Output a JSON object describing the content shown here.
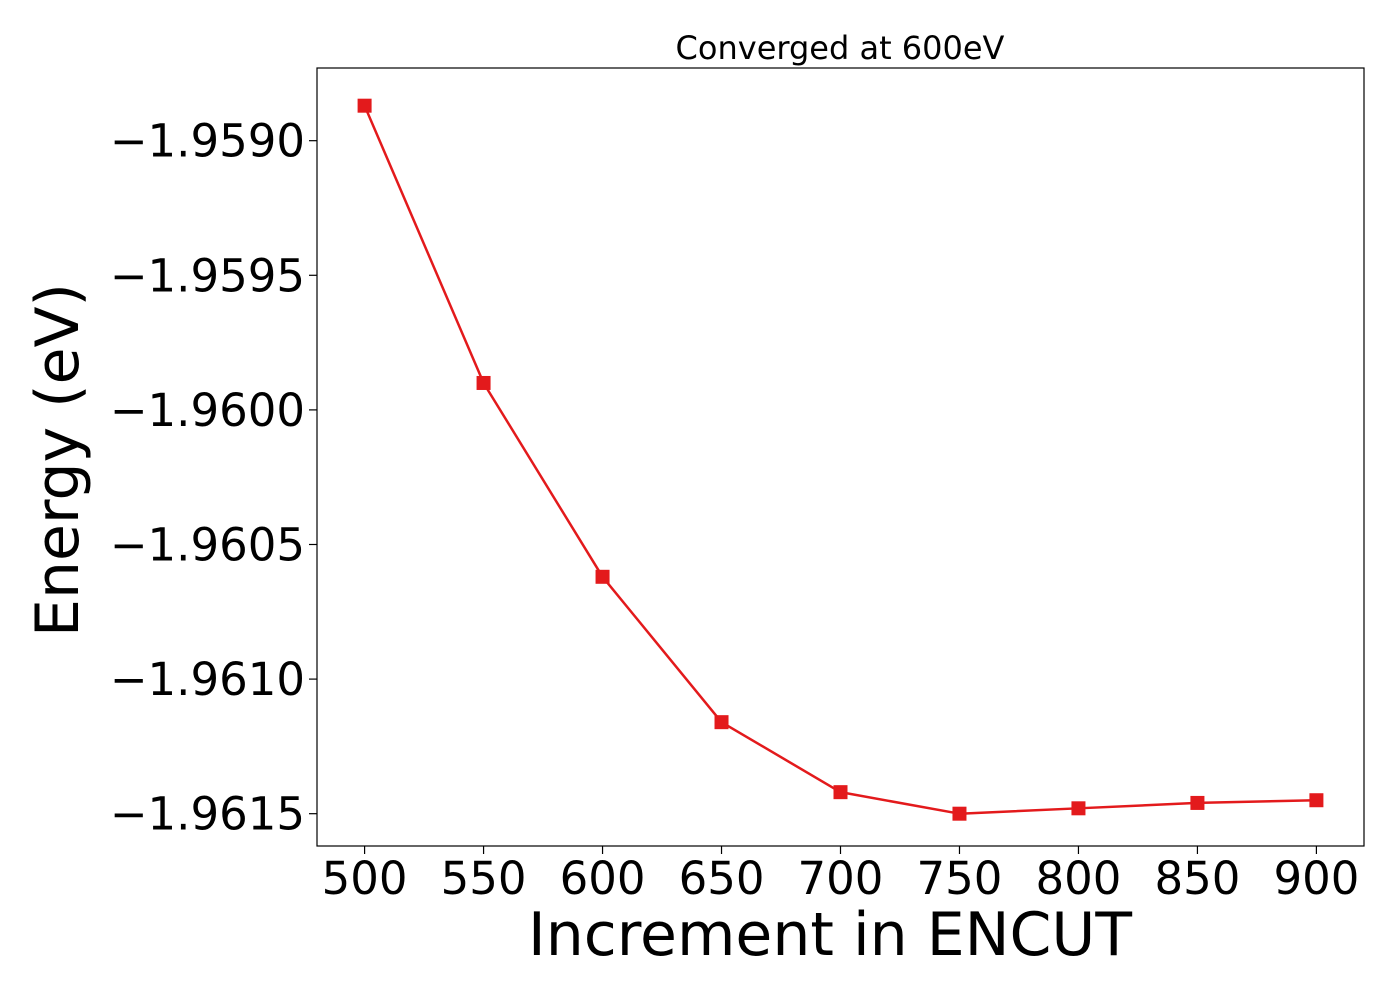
{
  "chart_data": {
    "type": "line",
    "title": "Converged at 600eV",
    "xlabel": "Increment in ENCUT",
    "ylabel": "Energy (eV)",
    "x": [
      500,
      550,
      600,
      650,
      700,
      750,
      800,
      850,
      900
    ],
    "xlim": [
      480,
      920
    ],
    "ylim": [
      -1.96162,
      -1.95873
    ],
    "x_ticks": [
      500,
      550,
      600,
      650,
      700,
      750,
      800,
      850,
      900
    ],
    "x_tick_labels": [
      "500",
      "550",
      "600",
      "650",
      "700",
      "750",
      "800",
      "850",
      "900"
    ],
    "y_ticks": [
      -1.959,
      -1.9595,
      -1.96,
      -1.9605,
      -1.961,
      -1.9615
    ],
    "y_tick_labels": [
      "−1.9590",
      "−1.9595",
      "−1.9600",
      "−1.9605",
      "−1.9610",
      "−1.9615"
    ],
    "grid": false,
    "series": [
      {
        "values": [
          -1.95887,
          -1.9599,
          -1.96062,
          -1.96116,
          -1.96142,
          -1.9615,
          -1.96148,
          -1.96146,
          -1.96145
        ],
        "color": "#e31a1c",
        "marker": "square"
      }
    ]
  }
}
